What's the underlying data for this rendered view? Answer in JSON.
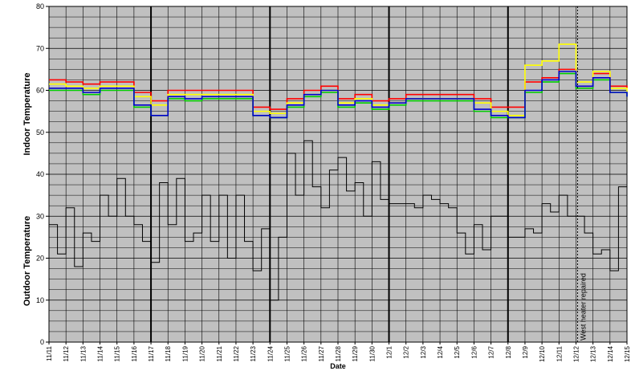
{
  "chart_data": {
    "type": "line",
    "title": "",
    "xlabel": "Date",
    "ylabel_top": "Indoor Temperature",
    "ylabel_bottom": "Outdoor Temperature",
    "ylim": [
      0,
      80
    ],
    "yticks": [
      "0",
      "10",
      "20",
      "30",
      "40",
      "50",
      "60",
      "70",
      "80"
    ],
    "x_start": "11/11",
    "x_end": "12/15",
    "x_ticks": [
      "11/11",
      "11/12",
      "11/13",
      "11/14",
      "11/15",
      "11/16",
      "11/17",
      "11/18",
      "11/19",
      "11/20",
      "11/21",
      "11/22",
      "11/23",
      "11/24",
      "11/25",
      "11/26",
      "11/27",
      "11/28",
      "11/29",
      "11/30",
      "12/1",
      "12/2",
      "12/3",
      "12/4",
      "12/5",
      "12/6",
      "12/7",
      "12/8",
      "12/9",
      "12/10",
      "12/11",
      "12/12",
      "12/13",
      "12/14",
      "12/15"
    ],
    "bold_day_lines": [
      "11/17",
      "11/24",
      "12/1",
      "12/8"
    ],
    "grid": true,
    "plot_background": "#c0c0c0",
    "annotation": {
      "date": "12/12",
      "text": "West heater repaired",
      "style": "dashed"
    },
    "series": [
      {
        "color": "#ff0000",
        "x": [
          "11/11",
          "11/12",
          "11/13",
          "11/14",
          "11/15",
          "11/16",
          "11/17",
          "11/18",
          "11/19",
          "11/20",
          "11/21",
          "11/22",
          "11/23",
          "11/24",
          "11/25",
          "11/26",
          "11/27",
          "11/28",
          "11/29",
          "11/30",
          "12/1",
          "12/2",
          "12/3",
          "12/4",
          "12/5",
          "12/6",
          "12/7",
          "12/8",
          "12/9",
          "12/10",
          "12/11",
          "12/12",
          "12/13",
          "12/14",
          "12/15"
        ],
        "values": [
          62.5,
          62,
          61.5,
          62,
          62,
          59.5,
          57.5,
          60,
          60,
          60,
          60,
          60,
          56,
          55.5,
          58,
          60,
          61,
          58,
          59,
          57.5,
          58,
          59,
          59,
          59,
          59,
          58,
          56,
          56,
          62,
          63,
          65,
          61,
          64,
          61,
          60.5
        ]
      },
      {
        "color": "#ffff00",
        "x": [
          "11/11",
          "11/12",
          "11/13",
          "11/14",
          "11/15",
          "11/16",
          "11/17",
          "11/18",
          "11/19",
          "11/20",
          "11/21",
          "11/22",
          "11/23",
          "11/24",
          "11/25",
          "11/26",
          "11/27",
          "11/28",
          "11/29",
          "11/30",
          "12/1",
          "12/2",
          "12/3",
          "12/4",
          "12/5",
          "12/6",
          "12/7",
          "12/8",
          "12/9",
          "12/10",
          "12/11",
          "12/12",
          "12/13",
          "12/14",
          "12/15"
        ],
        "values": [
          61.5,
          61,
          60.5,
          61,
          61,
          58.5,
          56.5,
          59,
          59,
          59,
          59,
          59,
          55,
          54.5,
          57,
          59,
          60,
          57,
          58,
          56.5,
          57,
          58,
          58,
          58,
          58,
          57,
          55,
          54,
          66,
          67,
          71,
          62,
          64.5,
          60.5,
          59.5
        ]
      },
      {
        "color": "#00cc00",
        "x": [
          "11/11",
          "11/12",
          "11/13",
          "11/14",
          "11/15",
          "11/16",
          "11/17",
          "11/18",
          "11/19",
          "11/20",
          "11/21",
          "11/22",
          "11/23",
          "11/24",
          "11/25",
          "11/26",
          "11/27",
          "11/28",
          "11/29",
          "11/30",
          "12/1",
          "12/2",
          "12/3",
          "12/4",
          "12/5",
          "12/6",
          "12/7",
          "12/8",
          "12/9",
          "12/10",
          "12/11",
          "12/12",
          "12/13",
          "12/14",
          "12/15"
        ],
        "values": [
          60,
          60,
          59,
          60,
          60,
          56,
          54,
          58,
          57.5,
          58,
          58,
          58,
          54,
          53.5,
          56,
          58.5,
          59.5,
          56,
          57,
          55.5,
          56.5,
          57.5,
          57.5,
          57.5,
          57.5,
          55,
          53.5,
          53.5,
          59.5,
          62,
          64,
          60.5,
          62.5,
          59.5,
          58.5
        ]
      },
      {
        "color": "#0000cc",
        "x": [
          "11/11",
          "11/12",
          "11/13",
          "11/14",
          "11/15",
          "11/16",
          "11/17",
          "11/18",
          "11/19",
          "11/20",
          "11/21",
          "11/22",
          "11/23",
          "11/24",
          "11/25",
          "11/26",
          "11/27",
          "11/28",
          "11/29",
          "11/30",
          "12/1",
          "12/2",
          "12/3",
          "12/4",
          "12/5",
          "12/6",
          "12/7",
          "12/8",
          "12/9",
          "12/10",
          "12/11",
          "12/12",
          "12/13",
          "12/14",
          "12/15"
        ],
        "values": [
          60.5,
          60.5,
          59.5,
          60.5,
          60.5,
          56.5,
          54,
          58.5,
          58,
          58.5,
          58.5,
          58.5,
          54,
          53.5,
          56.5,
          59,
          60,
          56.5,
          57.5,
          56,
          57,
          58,
          58,
          58,
          58,
          55.5,
          54,
          53.5,
          60,
          62.5,
          64.5,
          61,
          63,
          59.5,
          58.5
        ]
      },
      {
        "color": "#000000",
        "x": [
          "11/11",
          "11/11.5",
          "11/12",
          "11/12.5",
          "11/13",
          "11/13.5",
          "11/14",
          "11/14.5",
          "11/15",
          "11/15.5",
          "11/16",
          "11/16.5",
          "11/17",
          "11/17.5",
          "11/18",
          "11/18.5",
          "11/19",
          "11/19.5",
          "11/20",
          "11/20.5",
          "11/21",
          "11/21.5",
          "11/22",
          "11/22.5",
          "11/23",
          "11/23.5",
          "11/24",
          "11/24.5",
          "11/25",
          "11/25.5",
          "11/26",
          "11/26.5",
          "11/27",
          "11/27.5",
          "11/28",
          "11/28.5",
          "11/29",
          "11/29.5",
          "11/30",
          "11/30.5",
          "12/1",
          "12/1.5",
          "12/2",
          "12/2.5",
          "12/3",
          "12/3.5",
          "12/4",
          "12/4.5",
          "12/5",
          "12/5.5",
          "12/6",
          "12/6.5",
          "12/7",
          "12/7.5",
          "12/8",
          "12/8.5",
          "12/9",
          "12/9.5",
          "12/10",
          "12/10.5",
          "12/11",
          "12/11.5",
          "12/12",
          "12/12.5",
          "12/13",
          "12/13.5",
          "12/14",
          "12/14.5",
          "12/15"
        ],
        "values": [
          28,
          21,
          32,
          18,
          26,
          24,
          35,
          30,
          39,
          30,
          28,
          24,
          19,
          38,
          28,
          39,
          24,
          26,
          35,
          24,
          35,
          20,
          35,
          24,
          17,
          27,
          10,
          25,
          45,
          35,
          48,
          37,
          32,
          41,
          44,
          36,
          38,
          30,
          43,
          34,
          33,
          33,
          33,
          32,
          35,
          34,
          33,
          32,
          26,
          21,
          28,
          22,
          30,
          30,
          25,
          25,
          27,
          26,
          33,
          31,
          35,
          30,
          30,
          26,
          21,
          22,
          17,
          37,
          32
        ]
      }
    ]
  }
}
